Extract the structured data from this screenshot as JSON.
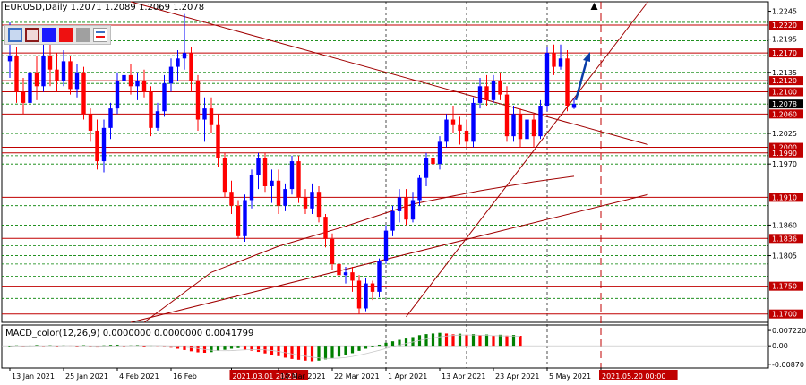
{
  "header": {
    "symbol": "EURUSD,Daily",
    "ohlc": "1.2071 1.2089 1.2069 1.2078"
  },
  "toolbar": {
    "tools": [
      {
        "name": "rect-blue-outline-tool",
        "fill": "#c8d8f0",
        "border": "#3b6fc4"
      },
      {
        "name": "rect-red-outline-tool",
        "fill": "#f0d8d8",
        "border": "#8b1a1a"
      },
      {
        "name": "rect-blue-fill-tool",
        "fill": "#1a1aff",
        "border": "#1a1aff"
      },
      {
        "name": "rect-red-fill-tool",
        "fill": "#ee1111",
        "border": "#ee1111"
      },
      {
        "name": "rect-gray-fill-tool",
        "fill": "#a0a0a0",
        "border": "#a0a0a0"
      },
      {
        "name": "lines-style-tool",
        "fill": "#ffffff",
        "border": "#3b6fc4"
      }
    ]
  },
  "macd": {
    "label": "MACD_color(12,26,9) 0.0000000 0.0000000 0.0041799",
    "ticks": [
      {
        "v": 0.0072,
        "label": "0.007220"
      },
      {
        "v": 0.0,
        "label": "0.00"
      },
      {
        "v": -0.0087,
        "label": "-0.00870"
      }
    ]
  },
  "time_axis": [
    {
      "i": 0,
      "label": "13 Jan 2021"
    },
    {
      "i": 8,
      "label": "25 Jan 2021"
    },
    {
      "i": 16,
      "label": "4 Feb 2021"
    },
    {
      "i": 24,
      "label": "16 Feb"
    },
    {
      "i": 33,
      "label": "2021.03.01 20:28",
      "highlight": true
    },
    {
      "i": 40,
      "label": "10 Mar 2021"
    },
    {
      "i": 48,
      "label": "22 Mar 2021"
    },
    {
      "i": 56,
      "label": "1 Apr 2021"
    },
    {
      "i": 64,
      "label": "13 Apr 2021"
    },
    {
      "i": 72,
      "label": "23 Apr 2021"
    },
    {
      "i": 80,
      "label": "5 May 2021"
    },
    {
      "i": 88,
      "label": "2021.05.20 00:00",
      "highlight": true
    }
  ],
  "colors": {
    "bull": "#0000ff",
    "bear": "#ff0000",
    "level_line": "#c00000",
    "dotted_green": "#008000",
    "trend": "#a00000",
    "tag_bg": "#c00000",
    "price_tag_bg": "#000000",
    "arrow": "#0a3da8",
    "macd_up": "#008000",
    "macd_down": "#ff0000"
  },
  "chart_data": {
    "type": "candlestick",
    "symbol": "EURUSD",
    "timeframe": "Daily",
    "ylim": [
      1.1685,
      1.2262
    ],
    "y_ticks": [
      {
        "v": 1.2245,
        "label": "1.2245"
      },
      {
        "v": 1.2195,
        "label": "1.2195"
      },
      {
        "v": 1.2135,
        "label": "1.2135"
      },
      {
        "v": 1.2025,
        "label": "1.2025"
      },
      {
        "v": 1.197,
        "label": "1.1970"
      },
      {
        "v": 1.186,
        "label": "1.1860"
      },
      {
        "v": 1.1805,
        "label": "1.1805"
      }
    ],
    "levels": [
      {
        "v": 1.222,
        "label": "1.2220"
      },
      {
        "v": 1.217,
        "label": "1.2170"
      },
      {
        "v": 1.212,
        "label": "1.2120"
      },
      {
        "v": 1.21,
        "label": "1.2100"
      },
      {
        "v": 1.206,
        "label": "1.2060"
      },
      {
        "v": 1.2,
        "label": "1.2000"
      },
      {
        "v": 1.199,
        "label": "1.1990"
      },
      {
        "v": 1.191,
        "label": "1.1910"
      },
      {
        "v": 1.1836,
        "label": "1.1836"
      },
      {
        "v": 1.175,
        "label": "1.1750"
      },
      {
        "v": 1.17,
        "label": "1.1700"
      }
    ],
    "current_price": {
      "v": 1.2078,
      "label": "1.2078"
    },
    "dotted_levels": [
      1.2225,
      1.2192,
      1.2165,
      1.2135,
      1.2115,
      1.2078,
      1.2042,
      1.2025,
      1.1985,
      1.197,
      1.1895,
      1.186,
      1.1823,
      1.1805,
      1.179,
      1.1768,
      1.1728
    ],
    "trendlines": [
      {
        "from": [
          18,
          1.2262
        ],
        "to": [
          95,
          1.2005
        ]
      },
      {
        "from": [
          18,
          1.1685
        ],
        "to": [
          95,
          1.1915
        ]
      },
      {
        "from": [
          59,
          1.1695
        ],
        "to": [
          95,
          1.2262
        ]
      }
    ],
    "moving_average": [
      [
        20,
        1.1685
      ],
      [
        30,
        1.1775
      ],
      [
        40,
        1.1822
      ],
      [
        50,
        1.1858
      ],
      [
        60,
        1.1898
      ],
      [
        70,
        1.1922
      ],
      [
        78,
        1.1938
      ],
      [
        84,
        1.1948
      ]
    ],
    "candles": [
      {
        "o": 1.2155,
        "h": 1.2225,
        "l": 1.2125,
        "c": 1.2165
      },
      {
        "o": 1.2165,
        "h": 1.218,
        "l": 1.208,
        "c": 1.21
      },
      {
        "o": 1.21,
        "h": 1.2125,
        "l": 1.206,
        "c": 1.208
      },
      {
        "o": 1.208,
        "h": 1.215,
        "l": 1.207,
        "c": 1.2135
      },
      {
        "o": 1.2135,
        "h": 1.2165,
        "l": 1.2085,
        "c": 1.211
      },
      {
        "o": 1.211,
        "h": 1.2185,
        "l": 1.21,
        "c": 1.2165
      },
      {
        "o": 1.2165,
        "h": 1.219,
        "l": 1.211,
        "c": 1.214
      },
      {
        "o": 1.214,
        "h": 1.217,
        "l": 1.21,
        "c": 1.212
      },
      {
        "o": 1.212,
        "h": 1.2175,
        "l": 1.211,
        "c": 1.2155
      },
      {
        "o": 1.2155,
        "h": 1.2165,
        "l": 1.2095,
        "c": 1.2105
      },
      {
        "o": 1.2105,
        "h": 1.215,
        "l": 1.209,
        "c": 1.2135
      },
      {
        "o": 1.2135,
        "h": 1.2145,
        "l": 1.205,
        "c": 1.206
      },
      {
        "o": 1.206,
        "h": 1.207,
        "l": 1.201,
        "c": 1.203
      },
      {
        "o": 1.203,
        "h": 1.205,
        "l": 1.196,
        "c": 1.1975
      },
      {
        "o": 1.1975,
        "h": 1.205,
        "l": 1.1955,
        "c": 1.2035
      },
      {
        "o": 1.2035,
        "h": 1.208,
        "l": 1.2015,
        "c": 1.207
      },
      {
        "o": 1.207,
        "h": 1.2135,
        "l": 1.206,
        "c": 1.212
      },
      {
        "o": 1.212,
        "h": 1.2155,
        "l": 1.2105,
        "c": 1.213
      },
      {
        "o": 1.213,
        "h": 1.215,
        "l": 1.2095,
        "c": 1.211
      },
      {
        "o": 1.211,
        "h": 1.2135,
        "l": 1.2085,
        "c": 1.212
      },
      {
        "o": 1.212,
        "h": 1.214,
        "l": 1.209,
        "c": 1.21
      },
      {
        "o": 1.21,
        "h": 1.211,
        "l": 1.202,
        "c": 1.2035
      },
      {
        "o": 1.2035,
        "h": 1.208,
        "l": 1.203,
        "c": 1.2065
      },
      {
        "o": 1.2065,
        "h": 1.213,
        "l": 1.2055,
        "c": 1.2115
      },
      {
        "o": 1.2115,
        "h": 1.216,
        "l": 1.21,
        "c": 1.2145
      },
      {
        "o": 1.2145,
        "h": 1.2175,
        "l": 1.212,
        "c": 1.216
      },
      {
        "o": 1.216,
        "h": 1.224,
        "l": 1.214,
        "c": 1.217
      },
      {
        "o": 1.217,
        "h": 1.218,
        "l": 1.21,
        "c": 1.212
      },
      {
        "o": 1.212,
        "h": 1.213,
        "l": 1.203,
        "c": 1.205
      },
      {
        "o": 1.205,
        "h": 1.209,
        "l": 1.201,
        "c": 1.207
      },
      {
        "o": 1.207,
        "h": 1.209,
        "l": 1.2025,
        "c": 1.204
      },
      {
        "o": 1.204,
        "h": 1.206,
        "l": 1.1965,
        "c": 1.198
      },
      {
        "o": 1.198,
        "h": 1.199,
        "l": 1.191,
        "c": 1.192
      },
      {
        "o": 1.192,
        "h": 1.194,
        "l": 1.188,
        "c": 1.1895
      },
      {
        "o": 1.1895,
        "h": 1.1905,
        "l": 1.1835,
        "c": 1.184
      },
      {
        "o": 1.184,
        "h": 1.1915,
        "l": 1.183,
        "c": 1.1905
      },
      {
        "o": 1.1905,
        "h": 1.196,
        "l": 1.189,
        "c": 1.195
      },
      {
        "o": 1.195,
        "h": 1.199,
        "l": 1.1925,
        "c": 1.198
      },
      {
        "o": 1.198,
        "h": 1.199,
        "l": 1.192,
        "c": 1.193
      },
      {
        "o": 1.193,
        "h": 1.196,
        "l": 1.19,
        "c": 1.194
      },
      {
        "o": 1.194,
        "h": 1.196,
        "l": 1.188,
        "c": 1.1895
      },
      {
        "o": 1.1895,
        "h": 1.1935,
        "l": 1.1885,
        "c": 1.1925
      },
      {
        "o": 1.1925,
        "h": 1.1985,
        "l": 1.1915,
        "c": 1.1975
      },
      {
        "o": 1.1975,
        "h": 1.1985,
        "l": 1.19,
        "c": 1.191
      },
      {
        "o": 1.191,
        "h": 1.1925,
        "l": 1.188,
        "c": 1.189
      },
      {
        "o": 1.189,
        "h": 1.1935,
        "l": 1.188,
        "c": 1.192
      },
      {
        "o": 1.192,
        "h": 1.193,
        "l": 1.1865,
        "c": 1.1875
      },
      {
        "o": 1.1875,
        "h": 1.188,
        "l": 1.182,
        "c": 1.1835
      },
      {
        "o": 1.1835,
        "h": 1.1845,
        "l": 1.178,
        "c": 1.179
      },
      {
        "o": 1.179,
        "h": 1.18,
        "l": 1.176,
        "c": 1.177
      },
      {
        "o": 1.177,
        "h": 1.1785,
        "l": 1.1755,
        "c": 1.1775
      },
      {
        "o": 1.1775,
        "h": 1.1785,
        "l": 1.174,
        "c": 1.176
      },
      {
        "o": 1.176,
        "h": 1.177,
        "l": 1.17,
        "c": 1.171
      },
      {
        "o": 1.171,
        "h": 1.1765,
        "l": 1.1705,
        "c": 1.1755
      },
      {
        "o": 1.1755,
        "h": 1.176,
        "l": 1.1725,
        "c": 1.174
      },
      {
        "o": 1.174,
        "h": 1.18,
        "l": 1.173,
        "c": 1.1795
      },
      {
        "o": 1.1795,
        "h": 1.186,
        "l": 1.179,
        "c": 1.185
      },
      {
        "o": 1.185,
        "h": 1.1895,
        "l": 1.184,
        "c": 1.1885
      },
      {
        "o": 1.1885,
        "h": 1.1925,
        "l": 1.1865,
        "c": 1.191
      },
      {
        "o": 1.191,
        "h": 1.1925,
        "l": 1.186,
        "c": 1.187
      },
      {
        "o": 1.187,
        "h": 1.192,
        "l": 1.1865,
        "c": 1.1905
      },
      {
        "o": 1.1905,
        "h": 1.195,
        "l": 1.1895,
        "c": 1.1945
      },
      {
        "o": 1.1945,
        "h": 1.199,
        "l": 1.193,
        "c": 1.198
      },
      {
        "o": 1.198,
        "h": 1.1995,
        "l": 1.1955,
        "c": 1.197
      },
      {
        "o": 1.197,
        "h": 1.202,
        "l": 1.196,
        "c": 1.201
      },
      {
        "o": 1.201,
        "h": 1.206,
        "l": 1.2,
        "c": 1.205
      },
      {
        "o": 1.205,
        "h": 1.2075,
        "l": 1.2025,
        "c": 1.204
      },
      {
        "o": 1.204,
        "h": 1.2055,
        "l": 1.2005,
        "c": 1.203
      },
      {
        "o": 1.203,
        "h": 1.205,
        "l": 1.2,
        "c": 1.201
      },
      {
        "o": 1.201,
        "h": 1.209,
        "l": 1.2,
        "c": 1.208
      },
      {
        "o": 1.208,
        "h": 1.2125,
        "l": 1.207,
        "c": 1.211
      },
      {
        "o": 1.211,
        "h": 1.213,
        "l": 1.2075,
        "c": 1.2085
      },
      {
        "o": 1.2085,
        "h": 1.213,
        "l": 1.208,
        "c": 1.212
      },
      {
        "o": 1.212,
        "h": 1.2135,
        "l": 1.2085,
        "c": 1.2095
      },
      {
        "o": 1.2095,
        "h": 1.211,
        "l": 1.201,
        "c": 1.202
      },
      {
        "o": 1.202,
        "h": 1.2075,
        "l": 1.201,
        "c": 1.206
      },
      {
        "o": 1.206,
        "h": 1.207,
        "l": 1.2,
        "c": 1.2015
      },
      {
        "o": 1.2015,
        "h": 1.206,
        "l": 1.199,
        "c": 1.205
      },
      {
        "o": 1.205,
        "h": 1.206,
        "l": 1.2,
        "c": 1.202
      },
      {
        "o": 1.202,
        "h": 1.2085,
        "l": 1.2015,
        "c": 1.2075
      },
      {
        "o": 1.2075,
        "h": 1.218,
        "l": 1.2065,
        "c": 1.217
      },
      {
        "o": 1.217,
        "h": 1.2185,
        "l": 1.213,
        "c": 1.2145
      },
      {
        "o": 1.2145,
        "h": 1.2185,
        "l": 1.214,
        "c": 1.216
      },
      {
        "o": 1.216,
        "h": 1.2175,
        "l": 1.2065,
        "c": 1.2075
      },
      {
        "o": 1.2071,
        "h": 1.2089,
        "l": 1.2069,
        "c": 1.2078
      }
    ],
    "macd_histogram": [
      -0.0003,
      0.0002,
      -0.0005,
      0.0001,
      0.0004,
      -0.0002,
      0.0003,
      -0.0004,
      0.0002,
      0.0001,
      -0.0006,
      0.0003,
      -0.0004,
      -0.0008,
      0.0002,
      0.0004,
      0.0005,
      -0.0003,
      0.0002,
      0.0004,
      -0.0005,
      0.0003,
      0.0001,
      -0.0002,
      -0.0009,
      -0.0014,
      -0.002,
      -0.0026,
      -0.0031,
      -0.0033,
      -0.003,
      -0.0024,
      -0.0019,
      -0.0014,
      -0.0011,
      -0.0018,
      -0.0023,
      -0.0029,
      -0.0036,
      -0.0042,
      -0.0049,
      -0.0056,
      -0.0062,
      -0.0066,
      -0.007,
      -0.0073,
      -0.007,
      -0.0064,
      -0.0058,
      -0.0051,
      -0.0042,
      -0.0035,
      -0.0024,
      -0.0014,
      -0.0004,
      0.0005,
      0.0014,
      0.0021,
      0.0028,
      0.0034,
      0.0041,
      0.005,
      0.0055,
      0.0058,
      0.0061,
      0.0058,
      0.0054,
      0.0057,
      0.0052,
      0.0055,
      0.005,
      0.0053,
      0.0049,
      0.0052,
      0.0048,
      0.0051,
      0.0047
    ]
  }
}
